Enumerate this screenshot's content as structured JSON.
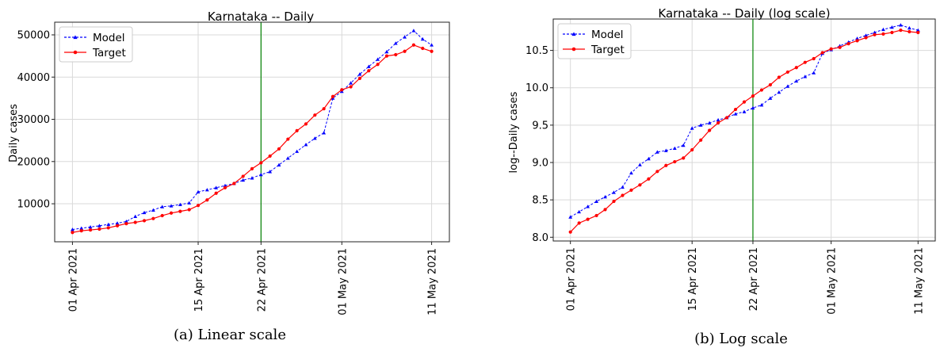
{
  "chart_data": [
    {
      "type": "line",
      "title": "Karnataka -- Daily",
      "caption": "(a) Linear scale",
      "xlabel": "",
      "ylabel": "Daily cases",
      "x_dates": [
        "2021-04-01",
        "2021-04-02",
        "2021-04-03",
        "2021-04-04",
        "2021-04-05",
        "2021-04-06",
        "2021-04-07",
        "2021-04-08",
        "2021-04-09",
        "2021-04-10",
        "2021-04-11",
        "2021-04-12",
        "2021-04-13",
        "2021-04-14",
        "2021-04-15",
        "2021-04-16",
        "2021-04-17",
        "2021-04-18",
        "2021-04-19",
        "2021-04-20",
        "2021-04-21",
        "2021-04-22",
        "2021-04-23",
        "2021-04-24",
        "2021-04-25",
        "2021-04-26",
        "2021-04-27",
        "2021-04-28",
        "2021-04-29",
        "2021-04-30",
        "2021-05-01",
        "2021-05-02",
        "2021-05-03",
        "2021-05-04",
        "2021-05-05",
        "2021-05-06",
        "2021-05-07",
        "2021-05-08",
        "2021-05-09",
        "2021-05-10",
        "2021-05-11"
      ],
      "xticks": [
        {
          "label": "01 Apr 2021",
          "date": "2021-04-01"
        },
        {
          "label": "15 Apr 2021",
          "date": "2021-04-15"
        },
        {
          "label": "22 Apr 2021",
          "date": "2021-04-22"
        },
        {
          "label": "01 May 2021",
          "date": "2021-05-01"
        },
        {
          "label": "11 May 2021",
          "date": "2021-05-11"
        }
      ],
      "yticks": [
        10000,
        20000,
        30000,
        40000,
        50000
      ],
      "ylim": [
        1000,
        53000
      ],
      "vline_date": "2021-04-22",
      "vline_color": "#008000",
      "grid": true,
      "legend": "top-left",
      "series": [
        {
          "name": "Model",
          "color": "#0000ff",
          "style": "dashed",
          "marker": "triangle",
          "values": [
            3900,
            4200,
            4500,
            4800,
            5100,
            5400,
            5800,
            7000,
            7900,
            8500,
            9300,
            9500,
            9800,
            10200,
            12800,
            13300,
            13800,
            14300,
            14800,
            15600,
            16100,
            16900,
            17600,
            19200,
            20800,
            22400,
            24000,
            25500,
            26800,
            35000,
            36600,
            38600,
            40700,
            42500,
            44200,
            46000,
            48000,
            49500,
            51000,
            49000,
            47600
          ]
        },
        {
          "name": "Target",
          "color": "#ff0000",
          "style": "solid",
          "marker": "circle",
          "values": [
            3200,
            3600,
            3800,
            4000,
            4300,
            4800,
            5300,
            5600,
            6000,
            6500,
            7200,
            7800,
            8200,
            8600,
            9600,
            10900,
            12500,
            13800,
            14800,
            16500,
            18300,
            19700,
            21300,
            23000,
            25300,
            27300,
            28900,
            31000,
            32500,
            35400,
            37000,
            37700,
            39700,
            41500,
            43000,
            45000,
            45300,
            46100,
            47600,
            46800,
            46100
          ]
        }
      ]
    },
    {
      "type": "line",
      "title": "Karnataka -- Daily (log scale)",
      "caption": "(b) Log scale",
      "xlabel": "",
      "ylabel": "log--Daily cases",
      "x_dates": [
        "2021-04-01",
        "2021-04-02",
        "2021-04-03",
        "2021-04-04",
        "2021-04-05",
        "2021-04-06",
        "2021-04-07",
        "2021-04-08",
        "2021-04-09",
        "2021-04-10",
        "2021-04-11",
        "2021-04-12",
        "2021-04-13",
        "2021-04-14",
        "2021-04-15",
        "2021-04-16",
        "2021-04-17",
        "2021-04-18",
        "2021-04-19",
        "2021-04-20",
        "2021-04-21",
        "2021-04-22",
        "2021-04-23",
        "2021-04-24",
        "2021-04-25",
        "2021-04-26",
        "2021-04-27",
        "2021-04-28",
        "2021-04-29",
        "2021-04-30",
        "2021-05-01",
        "2021-05-02",
        "2021-05-03",
        "2021-05-04",
        "2021-05-05",
        "2021-05-06",
        "2021-05-07",
        "2021-05-08",
        "2021-05-09",
        "2021-05-10",
        "2021-05-11"
      ],
      "xticks": [
        {
          "label": "01 Apr 2021",
          "date": "2021-04-01"
        },
        {
          "label": "15 Apr 2021",
          "date": "2021-04-15"
        },
        {
          "label": "22 Apr 2021",
          "date": "2021-04-22"
        },
        {
          "label": "01 May 2021",
          "date": "2021-05-01"
        },
        {
          "label": "11 May 2021",
          "date": "2021-05-11"
        }
      ],
      "yticks": [
        8.0,
        8.5,
        9.0,
        9.5,
        10.0,
        10.5
      ],
      "ylim": [
        7.95,
        10.92
      ],
      "vline_date": "2021-04-22",
      "vline_color": "#008000",
      "grid": true,
      "legend": "top-left",
      "series": [
        {
          "name": "Model",
          "color": "#0000ff",
          "style": "dashed",
          "marker": "triangle",
          "values": [
            8.27,
            8.34,
            8.41,
            8.48,
            8.54,
            8.6,
            8.67,
            8.86,
            8.97,
            9.05,
            9.14,
            9.16,
            9.19,
            9.23,
            9.46,
            9.5,
            9.53,
            9.57,
            9.6,
            9.65,
            9.68,
            9.73,
            9.77,
            9.86,
            9.94,
            10.02,
            10.09,
            10.15,
            10.2,
            10.46,
            10.51,
            10.56,
            10.61,
            10.66,
            10.7,
            10.74,
            10.78,
            10.81,
            10.84,
            10.8,
            10.77
          ]
        },
        {
          "name": "Target",
          "color": "#ff0000",
          "style": "solid",
          "marker": "circle",
          "values": [
            8.07,
            8.19,
            8.24,
            8.29,
            8.37,
            8.48,
            8.56,
            8.63,
            8.7,
            8.78,
            8.88,
            8.96,
            9.01,
            9.06,
            9.17,
            9.3,
            9.43,
            9.53,
            9.6,
            9.71,
            9.81,
            9.89,
            9.97,
            10.04,
            10.14,
            10.21,
            10.27,
            10.34,
            10.39,
            10.47,
            10.52,
            10.54,
            10.59,
            10.63,
            10.67,
            10.71,
            10.72,
            10.74,
            10.77,
            10.75,
            10.74
          ]
        }
      ]
    }
  ]
}
